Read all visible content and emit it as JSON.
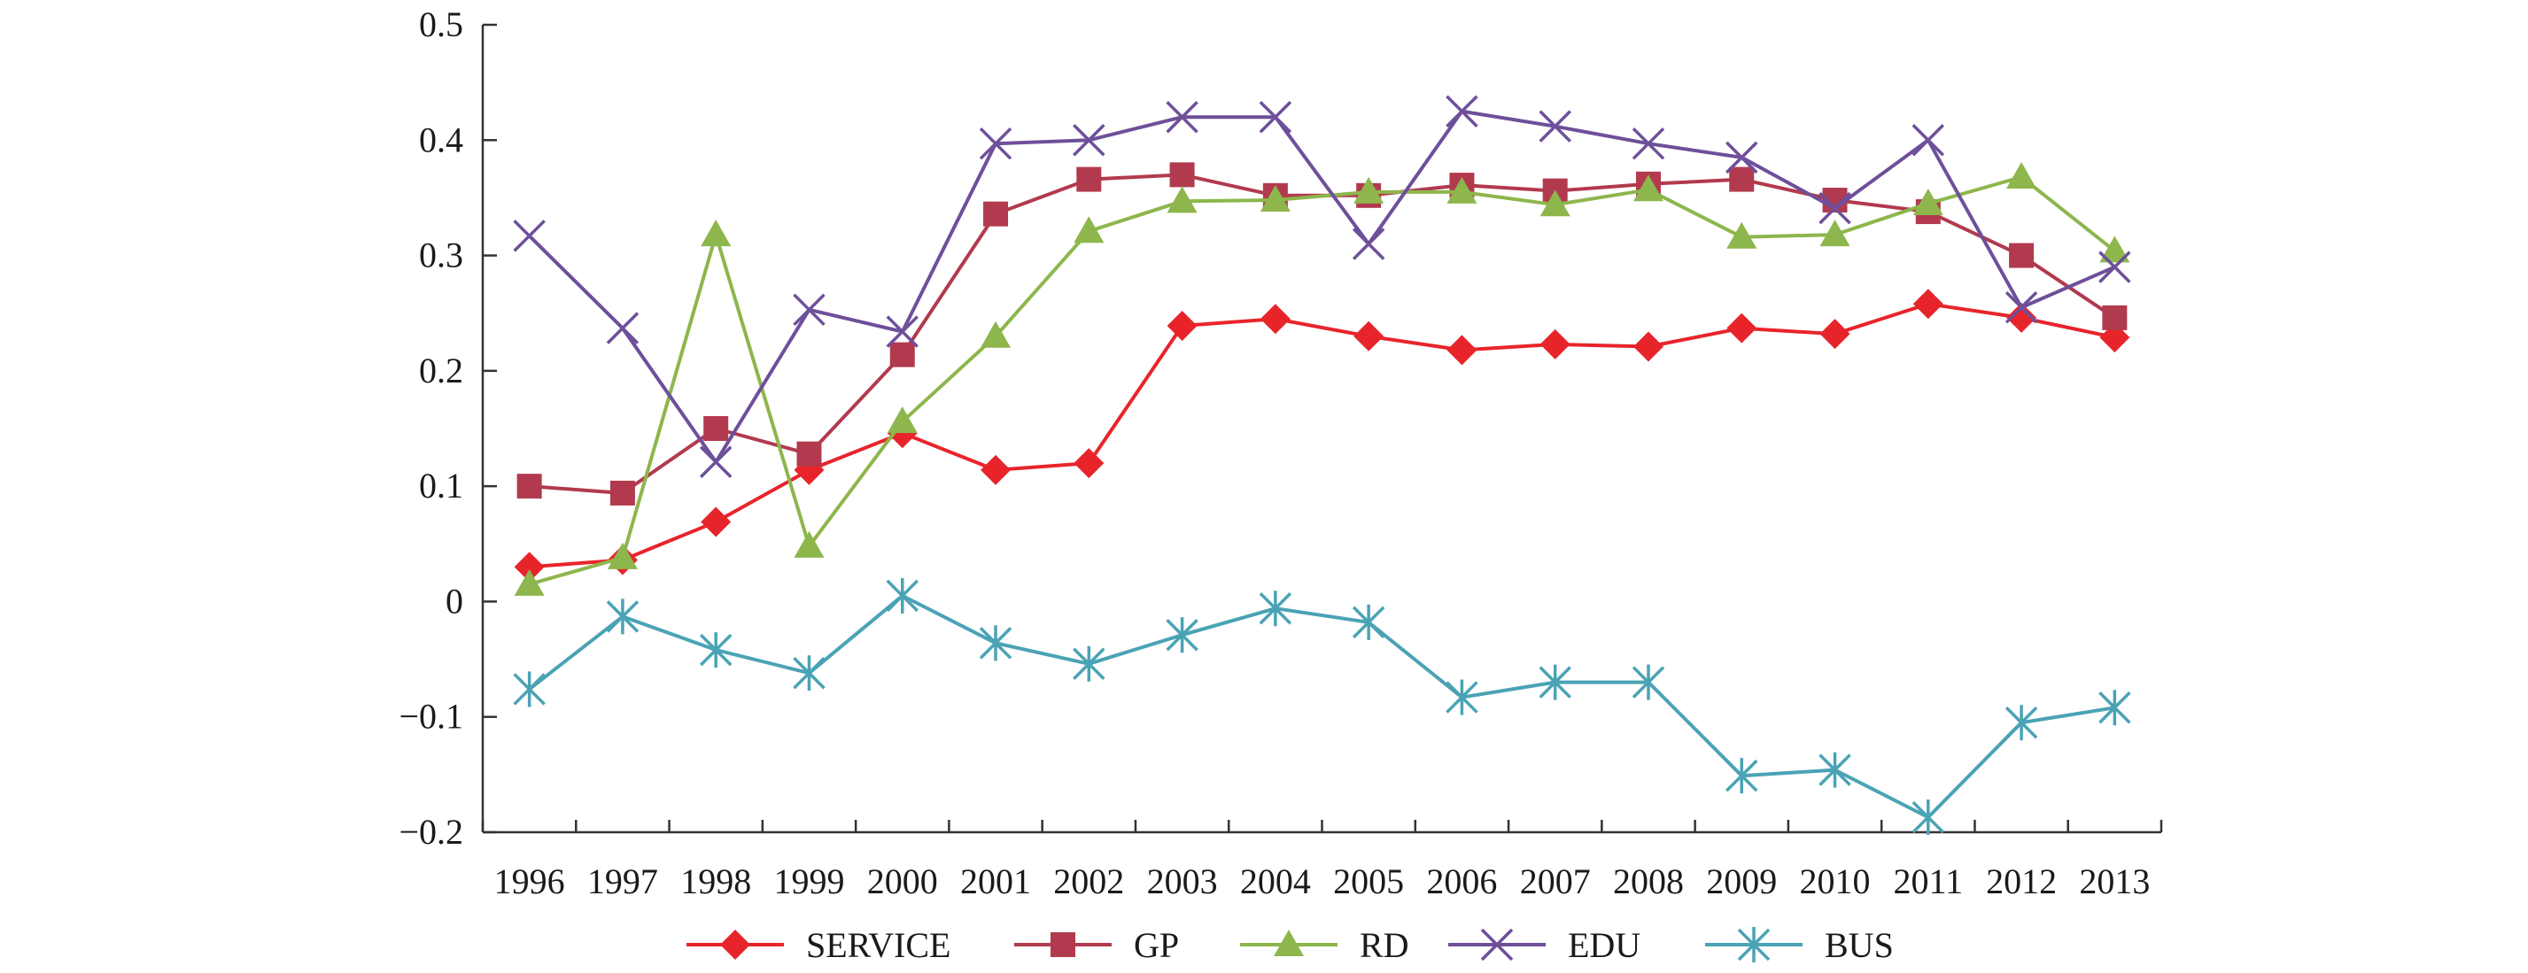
{
  "chart_data": {
    "type": "line",
    "title": "",
    "xlabel": "",
    "ylabel": "",
    "x": [
      "1996",
      "1997",
      "1998",
      "1999",
      "2000",
      "2001",
      "2002",
      "2003",
      "2004",
      "2005",
      "2006",
      "2007",
      "2008",
      "2009",
      "2010",
      "2011",
      "2012",
      "2013"
    ],
    "ylim": [
      -0.2,
      0.5
    ],
    "yticks": [
      "0.5",
      "0.4",
      "0.3",
      "0.2",
      "0.1",
      "0",
      "−0.1",
      "−0.2"
    ],
    "grid": false,
    "legend_position": "bottom",
    "series": [
      {
        "name": "SERVICE",
        "color": "#e8242b",
        "marker": "diamond",
        "values": [
          0.03,
          0.036,
          0.069,
          0.114,
          0.146,
          0.114,
          0.12,
          0.239,
          0.245,
          0.23,
          0.218,
          0.223,
          0.221,
          0.237,
          0.232,
          0.258,
          0.246,
          0.229
        ]
      },
      {
        "name": "GP",
        "color": "#b23a4e",
        "marker": "square",
        "values": [
          0.1,
          0.094,
          0.15,
          0.128,
          0.214,
          0.336,
          0.366,
          0.37,
          0.352,
          0.352,
          0.361,
          0.356,
          0.362,
          0.366,
          0.348,
          0.338,
          0.3,
          0.246
        ]
      },
      {
        "name": "RD",
        "color": "#8db64c",
        "marker": "triangle",
        "values": [
          0.015,
          0.038,
          0.318,
          0.048,
          0.156,
          0.23,
          0.321,
          0.347,
          0.348,
          0.355,
          0.355,
          0.344,
          0.357,
          0.316,
          0.318,
          0.345,
          0.368,
          0.304
        ]
      },
      {
        "name": "EDU",
        "color": "#6e4f9a",
        "marker": "x",
        "values": [
          0.317,
          0.237,
          0.121,
          0.253,
          0.234,
          0.397,
          0.4,
          0.42,
          0.42,
          0.31,
          0.425,
          0.412,
          0.397,
          0.385,
          0.341,
          0.4,
          0.255,
          0.29
        ]
      },
      {
        "name": "BUS",
        "color": "#4aa3b5",
        "marker": "star",
        "values": [
          -0.076,
          -0.013,
          -0.042,
          -0.062,
          0.005,
          -0.036,
          -0.054,
          -0.029,
          -0.006,
          -0.018,
          -0.083,
          -0.07,
          -0.07,
          -0.151,
          -0.146,
          -0.187,
          -0.105,
          -0.092
        ]
      }
    ]
  }
}
